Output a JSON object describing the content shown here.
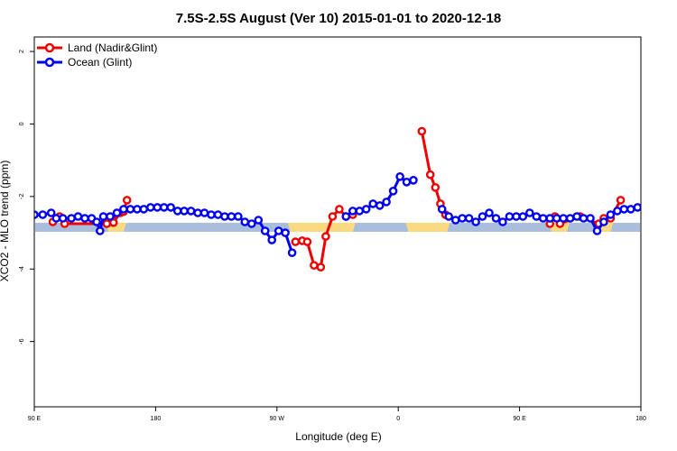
{
  "chart_data": {
    "type": "line",
    "title": "7.5S-2.5S August (Ver 10)   2015-01-01 to 2020-12-18",
    "xlabel": "Longitude (deg E)",
    "ylabel": "XCO2 - MLO trend (ppm)",
    "xlim": [
      90,
      450
    ],
    "ylim": [
      -7.8,
      2.4
    ],
    "x_ticks": [
      {
        "value": 90,
        "label": "90 E"
      },
      {
        "value": 162,
        "label": "180"
      },
      {
        "value": 234,
        "label": "90 W"
      },
      {
        "value": 306,
        "label": "0"
      },
      {
        "value": 378,
        "label": "90 E"
      },
      {
        "value": 450,
        "label": "180"
      }
    ],
    "y_ticks": [
      {
        "value": 2,
        "label": "2"
      },
      {
        "value": 0,
        "label": "0"
      },
      {
        "value": -2,
        "label": "-2"
      },
      {
        "value": -4,
        "label": "-4"
      },
      {
        "value": -6,
        "label": "-6"
      }
    ],
    "legend_position": "top-left",
    "grid": false,
    "land_band": {
      "y": -2.85,
      "ocean_color": "#a8bedc",
      "land_color": "#fad980",
      "land_spans": [
        [
          134,
          143
        ],
        [
          242,
          279
        ],
        [
          312,
          335
        ],
        [
          397,
          406
        ],
        [
          423,
          432
        ]
      ]
    },
    "series": [
      {
        "name": "Land (Nadir&Glint)",
        "color": "#ee0000",
        "segments": [
          [
            [
              101,
              -2.7
            ],
            [
              105,
              -2.55
            ],
            [
              108,
              -2.75
            ],
            [
              133,
              -2.75
            ],
            [
              136,
              -2.6
            ],
            [
              137,
              -2.72
            ],
            [
              141,
              -2.45
            ],
            [
              143,
              -2.42
            ],
            [
              145,
              -2.1
            ]
          ],
          [
            [
              245,
              -3.25
            ],
            [
              249,
              -3.22
            ],
            [
              252,
              -3.25
            ],
            [
              256,
              -3.9
            ],
            [
              260,
              -3.95
            ],
            [
              263,
              -3.1
            ],
            [
              267,
              -2.55
            ],
            [
              271,
              -2.35
            ],
            [
              275,
              -2.55
            ],
            [
              279,
              -2.5
            ]
          ],
          [
            [
              320,
              -0.2
            ],
            [
              325,
              -1.4
            ],
            [
              328,
              -1.75
            ],
            [
              331,
              -2.2
            ],
            [
              334,
              -2.5
            ]
          ],
          [
            [
              396,
              -2.75
            ],
            [
              399,
              -2.55
            ],
            [
              402,
              -2.75
            ],
            [
              414,
              -2.55
            ],
            [
              425,
              -2.75
            ],
            [
              428,
              -2.6
            ],
            [
              432,
              -2.6
            ],
            [
              438,
              -2.1
            ]
          ]
        ]
      },
      {
        "name": "Ocean (Glint)",
        "color": "#0000ee",
        "segments": [
          [
            [
              90,
              -2.5
            ],
            [
              95,
              -2.5
            ],
            [
              100,
              -2.45
            ],
            [
              103,
              -2.6
            ],
            [
              107,
              -2.6
            ],
            [
              112,
              -2.6
            ],
            [
              116,
              -2.55
            ],
            [
              120,
              -2.6
            ],
            [
              124,
              -2.6
            ],
            [
              127,
              -2.7
            ],
            [
              129,
              -2.95
            ],
            [
              131,
              -2.55
            ],
            [
              135,
              -2.55
            ],
            [
              139,
              -2.45
            ],
            [
              143,
              -2.35
            ],
            [
              147,
              -2.35
            ],
            [
              151,
              -2.35
            ],
            [
              155,
              -2.35
            ],
            [
              159,
              -2.3
            ],
            [
              163,
              -2.3
            ],
            [
              167,
              -2.3
            ],
            [
              171,
              -2.3
            ],
            [
              175,
              -2.4
            ],
            [
              179,
              -2.4
            ],
            [
              183,
              -2.4
            ],
            [
              187,
              -2.45
            ],
            [
              191,
              -2.45
            ],
            [
              195,
              -2.5
            ],
            [
              199,
              -2.5
            ],
            [
              203,
              -2.55
            ],
            [
              207,
              -2.55
            ],
            [
              211,
              -2.55
            ],
            [
              215,
              -2.7
            ],
            [
              219,
              -2.75
            ],
            [
              223,
              -2.65
            ],
            [
              227,
              -2.95
            ],
            [
              231,
              -3.2
            ],
            [
              235,
              -2.95
            ],
            [
              239,
              -3.0
            ],
            [
              243,
              -3.55
            ]
          ],
          [
            [
              275,
              -2.55
            ],
            [
              279,
              -2.4
            ],
            [
              283,
              -2.4
            ],
            [
              287,
              -2.35
            ],
            [
              291,
              -2.2
            ],
            [
              295,
              -2.25
            ],
            [
              299,
              -2.15
            ],
            [
              303,
              -1.85
            ],
            [
              307,
              -1.45
            ],
            [
              311,
              -1.6
            ],
            [
              315,
              -1.55
            ]
          ],
          [
            [
              332,
              -2.35
            ],
            [
              336,
              -2.55
            ],
            [
              340,
              -2.65
            ],
            [
              344,
              -2.6
            ],
            [
              348,
              -2.6
            ],
            [
              352,
              -2.7
            ],
            [
              356,
              -2.55
            ],
            [
              360,
              -2.45
            ],
            [
              364,
              -2.6
            ],
            [
              368,
              -2.7
            ],
            [
              372,
              -2.55
            ],
            [
              376,
              -2.55
            ],
            [
              380,
              -2.55
            ],
            [
              384,
              -2.45
            ],
            [
              388,
              -2.55
            ],
            [
              392,
              -2.6
            ],
            [
              396,
              -2.6
            ],
            [
              400,
              -2.6
            ],
            [
              404,
              -2.6
            ],
            [
              408,
              -2.6
            ],
            [
              412,
              -2.55
            ],
            [
              416,
              -2.6
            ],
            [
              420,
              -2.6
            ],
            [
              424,
              -2.95
            ],
            [
              428,
              -2.7
            ],
            [
              432,
              -2.5
            ],
            [
              436,
              -2.4
            ],
            [
              440,
              -2.35
            ],
            [
              444,
              -2.35
            ],
            [
              448,
              -2.3
            ],
            [
              452,
              -2.3
            ]
          ]
        ]
      }
    ]
  }
}
